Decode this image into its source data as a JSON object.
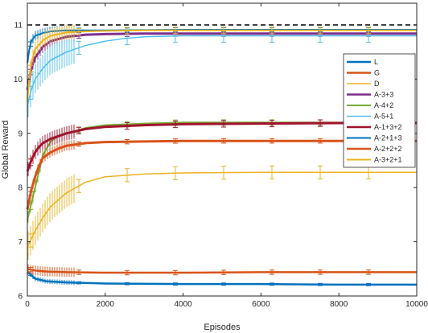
{
  "chart_data": {
    "type": "line",
    "title": "",
    "xlabel": "Episodes",
    "ylabel": "Global Reward",
    "xlim": [
      0,
      10000
    ],
    "ylim": [
      6,
      11.4
    ],
    "xticks": [
      0,
      2000,
      4000,
      6000,
      8000,
      10000
    ],
    "xtick_labels": [
      "0",
      "2000",
      "4000",
      "6000",
      "8000",
      "10000"
    ],
    "yticks": [
      6,
      7,
      8,
      9,
      10,
      11
    ],
    "ytick_labels": [
      "6",
      "7",
      "8",
      "9",
      "10",
      "11"
    ],
    "grid": false,
    "legend_position": "right",
    "reference_line": {
      "y": 11,
      "style": "dashed",
      "color": "#000000"
    },
    "series": [
      {
        "name": "L",
        "color": "#0072BD",
        "width": 2.5,
        "x": [
          0,
          200,
          500,
          1000,
          2000,
          4000,
          6000,
          8000,
          10000
        ],
        "y": [
          6.45,
          6.32,
          6.27,
          6.25,
          6.23,
          6.22,
          6.22,
          6.21,
          6.21
        ],
        "err": 0.02
      },
      {
        "name": "G",
        "color": "#D95319",
        "width": 2.5,
        "x": [
          0,
          200,
          500,
          1000,
          2000,
          4000,
          6000,
          8000,
          10000
        ],
        "y": [
          6.5,
          6.47,
          6.45,
          6.44,
          6.43,
          6.43,
          6.44,
          6.44,
          6.44
        ],
        "err": 0.04
      },
      {
        "name": "D",
        "color": "#EDB120",
        "width": 1.5,
        "x": [
          0,
          100,
          200,
          400,
          600,
          1000,
          1500,
          2000,
          3000,
          4000,
          6000,
          8000,
          10000
        ],
        "y": [
          6.9,
          7.05,
          7.2,
          7.45,
          7.65,
          7.9,
          8.1,
          8.2,
          8.25,
          8.27,
          8.28,
          8.28,
          8.28
        ],
        "err": 0.12
      },
      {
        "name": "A-3+3",
        "color": "#7E2F8E",
        "width": 3,
        "x": [
          0,
          100,
          200,
          400,
          600,
          1000,
          1500,
          2000,
          3000,
          4000,
          6000,
          8000,
          10000
        ],
        "y": [
          9.8,
          10.2,
          10.4,
          10.6,
          10.7,
          10.78,
          10.82,
          10.83,
          10.84,
          10.84,
          10.84,
          10.84,
          10.84
        ],
        "err": 0.05
      },
      {
        "name": "A-4+2",
        "color": "#77AC30",
        "width": 2,
        "x": [
          0,
          100,
          200,
          300,
          400,
          600,
          800,
          1000,
          1500,
          2000,
          3000,
          4000,
          6000,
          8000,
          10000
        ],
        "y": [
          7.4,
          7.7,
          8.0,
          8.3,
          8.6,
          8.85,
          8.95,
          9.0,
          9.1,
          9.15,
          9.18,
          9.2,
          9.2,
          9.2,
          9.2
        ],
        "err": 0.05
      },
      {
        "name": "A-5+1",
        "color": "#4DBEEE",
        "width": 1.5,
        "x": [
          0,
          100,
          200,
          400,
          600,
          1000,
          1500,
          2000,
          2500,
          3000,
          4000,
          6000,
          8000,
          10000
        ],
        "y": [
          9.5,
          9.8,
          10.0,
          10.2,
          10.35,
          10.5,
          10.62,
          10.7,
          10.75,
          10.78,
          10.8,
          10.8,
          10.8,
          10.8
        ],
        "err": 0.12
      },
      {
        "name": "A-1+3+2",
        "color": "#A2142F",
        "width": 3,
        "x": [
          0,
          100,
          200,
          300,
          400,
          600,
          800,
          1000,
          1500,
          2000,
          3000,
          4000,
          6000,
          8000,
          10000
        ],
        "y": [
          8.3,
          8.5,
          8.65,
          8.75,
          8.82,
          8.9,
          8.95,
          9.0,
          9.08,
          9.12,
          9.15,
          9.17,
          9.18,
          9.19,
          9.19
        ],
        "err": 0.06
      },
      {
        "name": "A-2+1+3",
        "color": "#0072BD",
        "width": 2,
        "x": [
          0,
          50,
          100,
          200,
          400,
          600,
          1000,
          2000,
          4000,
          6000,
          8000,
          10000
        ],
        "y": [
          10.3,
          10.55,
          10.7,
          10.8,
          10.85,
          10.88,
          10.9,
          10.9,
          10.91,
          10.91,
          10.91,
          10.91
        ],
        "err": 0.04
      },
      {
        "name": "A-2+2+2",
        "color": "#D95319",
        "width": 3,
        "x": [
          0,
          100,
          200,
          300,
          400,
          600,
          800,
          1000,
          1500,
          2000,
          3000,
          4000,
          6000,
          8000,
          10000
        ],
        "y": [
          7.6,
          7.95,
          8.2,
          8.4,
          8.55,
          8.65,
          8.72,
          8.77,
          8.82,
          8.84,
          8.85,
          8.86,
          8.86,
          8.86,
          8.86
        ],
        "err": 0.04
      },
      {
        "name": "A-3+2+1",
        "color": "#EDB120",
        "width": 2,
        "x": [
          0,
          50,
          100,
          200,
          400,
          600,
          1000,
          1500,
          2000,
          3000,
          4000,
          6000,
          8000,
          10000
        ],
        "y": [
          9.6,
          10.0,
          10.3,
          10.55,
          10.72,
          10.8,
          10.86,
          10.88,
          10.89,
          10.9,
          10.9,
          10.9,
          10.9,
          10.9
        ],
        "err": 0.06
      }
    ]
  }
}
